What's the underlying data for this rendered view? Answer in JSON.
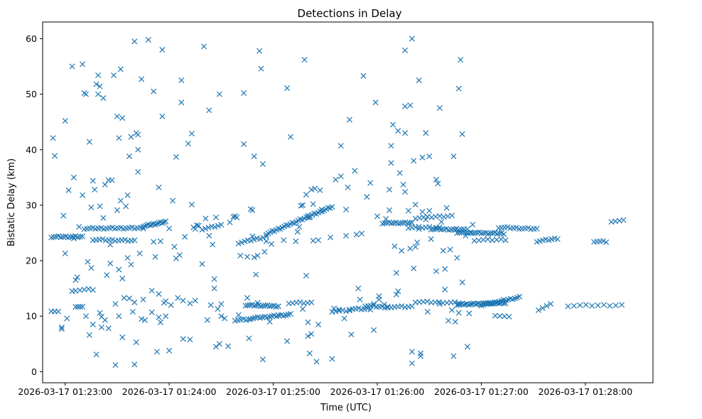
{
  "chart_data": {
    "type": "scatter",
    "title": "Detections in Delay",
    "xlabel": "Time (UTC)",
    "ylabel": "Bistatic Delay (km)",
    "x_unit": "seconds after 2026-03-17 01:22:00",
    "xlim": [
      47,
      399
    ],
    "ylim": [
      -2,
      63
    ],
    "x_ticks": [
      60,
      120,
      180,
      240,
      300,
      360
    ],
    "x_tick_labels": [
      "2026-03-17 01:23:00",
      "2026-03-17 01:24:00",
      "2026-03-17 01:25:00",
      "2026-03-17 01:26:00",
      "2026-03-17 01:27:00",
      "2026-03-17 01:28:00"
    ],
    "y_ticks": [
      0,
      10,
      20,
      30,
      40,
      50,
      60
    ],
    "y_tick_labels": [
      "0",
      "10",
      "20",
      "30",
      "40",
      "50",
      "60"
    ],
    "marker": "x",
    "color": "#1f77b4",
    "grid": false,
    "bands": [
      {
        "x0": 52,
        "x1": 70,
        "y0": 24.3,
        "y1": 24.3,
        "n": 14
      },
      {
        "x0": 71,
        "x1": 105,
        "y0": 25.8,
        "y1": 25.9,
        "n": 22
      },
      {
        "x0": 76,
        "x1": 100,
        "y0": 23.8,
        "y1": 23.6,
        "n": 14
      },
      {
        "x0": 105,
        "x1": 118,
        "y0": 26.2,
        "y1": 27.0,
        "n": 14
      },
      {
        "x0": 139,
        "x1": 150,
        "y0": 25.7,
        "y1": 26.4,
        "n": 7
      },
      {
        "x0": 160,
        "x1": 176,
        "y0": 23.2,
        "y1": 24.3,
        "n": 10
      },
      {
        "x0": 176,
        "x1": 214,
        "y0": 24.8,
        "y1": 29.7,
        "n": 34
      },
      {
        "x0": 243,
        "x1": 260,
        "y0": 26.8,
        "y1": 26.8,
        "n": 14
      },
      {
        "x0": 258,
        "x1": 276,
        "y0": 26.0,
        "y1": 26.0,
        "n": 10
      },
      {
        "x0": 262,
        "x1": 283,
        "y0": 27.7,
        "y1": 28.1,
        "n": 10
      },
      {
        "x0": 271,
        "x1": 290,
        "y0": 25.7,
        "y1": 25.6,
        "n": 14
      },
      {
        "x0": 286,
        "x1": 313,
        "y0": 25.1,
        "y1": 24.9,
        "n": 22
      },
      {
        "x0": 296,
        "x1": 314,
        "y0": 23.7,
        "y1": 23.8,
        "n": 8
      },
      {
        "x0": 310,
        "x1": 332,
        "y0": 26.0,
        "y1": 25.7,
        "n": 14
      },
      {
        "x0": 332,
        "x1": 344,
        "y0": 23.5,
        "y1": 24.0,
        "n": 8
      },
      {
        "x0": 365,
        "x1": 372,
        "y0": 23.5,
        "y1": 23.4,
        "n": 5
      },
      {
        "x0": 375,
        "x1": 382,
        "y0": 27.1,
        "y1": 27.2,
        "n": 4
      },
      {
        "x0": 52,
        "x1": 56,
        "y0": 11.0,
        "y1": 10.8,
        "n": 3
      },
      {
        "x0": 66,
        "x1": 70,
        "y0": 11.8,
        "y1": 11.6,
        "n": 4
      },
      {
        "x0": 66,
        "x1": 76,
        "y0": 14.7,
        "y1": 14.8,
        "n": 5
      },
      {
        "x0": 164,
        "x1": 183,
        "y0": 12.0,
        "y1": 11.8,
        "n": 16
      },
      {
        "x0": 158,
        "x1": 166,
        "y0": 9.3,
        "y1": 9.4,
        "n": 6
      },
      {
        "x0": 167,
        "x1": 190,
        "y0": 9.6,
        "y1": 10.3,
        "n": 18
      },
      {
        "x0": 189,
        "x1": 202,
        "y0": 12.4,
        "y1": 12.4,
        "n": 7
      },
      {
        "x0": 214,
        "x1": 224,
        "y0": 10.9,
        "y1": 11.0,
        "n": 6
      },
      {
        "x0": 224,
        "x1": 236,
        "y0": 11.3,
        "y1": 11.3,
        "n": 8
      },
      {
        "x0": 233,
        "x1": 246,
        "y0": 11.9,
        "y1": 11.6,
        "n": 9
      },
      {
        "x0": 248,
        "x1": 260,
        "y0": 11.7,
        "y1": 11.7,
        "n": 7
      },
      {
        "x0": 262,
        "x1": 287,
        "y0": 12.6,
        "y1": 12.4,
        "n": 12
      },
      {
        "x0": 286,
        "x1": 314,
        "y0": 12.1,
        "y1": 12.4,
        "n": 30
      },
      {
        "x0": 300,
        "x1": 322,
        "y0": 12.0,
        "y1": 13.4,
        "n": 18
      },
      {
        "x0": 308,
        "x1": 316,
        "y0": 10.2,
        "y1": 9.8,
        "n": 4
      },
      {
        "x0": 333,
        "x1": 340,
        "y0": 11.2,
        "y1": 12.1,
        "n": 4
      },
      {
        "x0": 350,
        "x1": 381,
        "y0": 11.9,
        "y1": 12.0,
        "n": 10
      }
    ],
    "scatter": [
      [
        53,
        42.1
      ],
      [
        54,
        38.9
      ],
      [
        58,
        8.0
      ],
      [
        58,
        7.7
      ],
      [
        59,
        28.1
      ],
      [
        60,
        21.3
      ],
      [
        60,
        45.2
      ],
      [
        61,
        9.6
      ],
      [
        62,
        32.7
      ],
      [
        64,
        14.5
      ],
      [
        64,
        55.0
      ],
      [
        65,
        24.0
      ],
      [
        65,
        35.0
      ],
      [
        66,
        16.5
      ],
      [
        67,
        17.0
      ],
      [
        68,
        26.1
      ],
      [
        70,
        55.4
      ],
      [
        70,
        31.8
      ],
      [
        71,
        50.2
      ],
      [
        72,
        50.0
      ],
      [
        72,
        10.0
      ],
      [
        73,
        19.8
      ],
      [
        74,
        6.6
      ],
      [
        74,
        41.4
      ],
      [
        75,
        18.7
      ],
      [
        75,
        29.6
      ],
      [
        76,
        34.4
      ],
      [
        76,
        8.5
      ],
      [
        77,
        32.8
      ],
      [
        78,
        3.1
      ],
      [
        78,
        51.8
      ],
      [
        79,
        53.4
      ],
      [
        79,
        50.0
      ],
      [
        80,
        51.4
      ],
      [
        80,
        29.8
      ],
      [
        80,
        10.6
      ],
      [
        81,
        8.0
      ],
      [
        81,
        9.9
      ],
      [
        82,
        49.3
      ],
      [
        82,
        27.7
      ],
      [
        83,
        33.7
      ],
      [
        83,
        9.3
      ],
      [
        84,
        17.4
      ],
      [
        85,
        7.8
      ],
      [
        85,
        34.5
      ],
      [
        86,
        19.5
      ],
      [
        86,
        22.9
      ],
      [
        87,
        34.5
      ],
      [
        88,
        53.4
      ],
      [
        89,
        1.2
      ],
      [
        89,
        12.2
      ],
      [
        90,
        46.0
      ],
      [
        90,
        29.1
      ],
      [
        91,
        42.1
      ],
      [
        91,
        10.0
      ],
      [
        91,
        18.4
      ],
      [
        92,
        54.5
      ],
      [
        92,
        30.8
      ],
      [
        93,
        45.7
      ],
      [
        93,
        6.2
      ],
      [
        93,
        16.8
      ],
      [
        94,
        13.3
      ],
      [
        95,
        29.8
      ],
      [
        96,
        31.8
      ],
      [
        96,
        20.5
      ],
      [
        97,
        38.8
      ],
      [
        97,
        13.2
      ],
      [
        98,
        42.3
      ],
      [
        98,
        19.3
      ],
      [
        99,
        10.8
      ],
      [
        100,
        59.5
      ],
      [
        100,
        1.3
      ],
      [
        100,
        12.5
      ],
      [
        101,
        5.3
      ],
      [
        101,
        43.0
      ],
      [
        102,
        42.7
      ],
      [
        102,
        36.0
      ],
      [
        102,
        40.0
      ],
      [
        103,
        21.3
      ],
      [
        104,
        52.7
      ],
      [
        104,
        9.5
      ],
      [
        105,
        13.0
      ],
      [
        106,
        9.3
      ],
      [
        108,
        59.8
      ],
      [
        110,
        14.6
      ],
      [
        110,
        10.7
      ],
      [
        111,
        50.5
      ],
      [
        111,
        23.4
      ],
      [
        112,
        20.7
      ],
      [
        113,
        3.6
      ],
      [
        114,
        33.2
      ],
      [
        114,
        9.8
      ],
      [
        114,
        14.0
      ],
      [
        115,
        8.9
      ],
      [
        115,
        23.5
      ],
      [
        116,
        46.0
      ],
      [
        116,
        58.0
      ],
      [
        117,
        12.4
      ],
      [
        118,
        10.0
      ],
      [
        118,
        12.7
      ],
      [
        120,
        25.8
      ],
      [
        120,
        3.8
      ],
      [
        121,
        12.0
      ],
      [
        122,
        30.8
      ],
      [
        123,
        22.5
      ],
      [
        124,
        20.4
      ],
      [
        124,
        38.7
      ],
      [
        125,
        13.3
      ],
      [
        126,
        21.0
      ],
      [
        127,
        52.5
      ],
      [
        127,
        48.5
      ],
      [
        128,
        5.9
      ],
      [
        128,
        12.8
      ],
      [
        129,
        24.3
      ],
      [
        131,
        41.1
      ],
      [
        132,
        12.3
      ],
      [
        132,
        5.8
      ],
      [
        133,
        30.1
      ],
      [
        133,
        42.9
      ],
      [
        134,
        26.0
      ],
      [
        135,
        12.8
      ],
      [
        135,
        25.7
      ],
      [
        136,
        26.4
      ],
      [
        137,
        26.3
      ],
      [
        139,
        19.4
      ],
      [
        140,
        58.6
      ],
      [
        141,
        27.6
      ],
      [
        142,
        9.3
      ],
      [
        143,
        47.1
      ],
      [
        143,
        24.5
      ],
      [
        144,
        12.0
      ],
      [
        145,
        22.9
      ],
      [
        146,
        15.0
      ],
      [
        146,
        16.7
      ],
      [
        147,
        27.8
      ],
      [
        147,
        4.5
      ],
      [
        148,
        11.3
      ],
      [
        149,
        5.0
      ],
      [
        149,
        50.0
      ],
      [
        150,
        10.0
      ],
      [
        150,
        12.2
      ],
      [
        152,
        9.6
      ],
      [
        154,
        4.6
      ],
      [
        155,
        26.9
      ],
      [
        157,
        27.9
      ],
      [
        158,
        28.0
      ],
      [
        159,
        27.8
      ],
      [
        160,
        10.2
      ],
      [
        161,
        20.9
      ],
      [
        163,
        50.2
      ],
      [
        163,
        41.0
      ],
      [
        165,
        20.7
      ],
      [
        165,
        13.3
      ],
      [
        166,
        6.0
      ],
      [
        167,
        29.3
      ],
      [
        168,
        24.4
      ],
      [
        168,
        29.1
      ],
      [
        169,
        38.8
      ],
      [
        169,
        20.6
      ],
      [
        170,
        17.5
      ],
      [
        171,
        20.9
      ],
      [
        171,
        12.4
      ],
      [
        172,
        57.8
      ],
      [
        173,
        54.6
      ],
      [
        174,
        37.4
      ],
      [
        174,
        2.2
      ],
      [
        175,
        21.6
      ],
      [
        176,
        23.5
      ],
      [
        178,
        9.0
      ],
      [
        179,
        23.0
      ],
      [
        183,
        10.2
      ],
      [
        186,
        23.7
      ],
      [
        188,
        51.1
      ],
      [
        188,
        5.5
      ],
      [
        190,
        42.3
      ],
      [
        193,
        23.5
      ],
      [
        194,
        25.2
      ],
      [
        195,
        26.1
      ],
      [
        196,
        29.9
      ],
      [
        197,
        11.3
      ],
      [
        197,
        30.0
      ],
      [
        198,
        56.2
      ],
      [
        199,
        31.9
      ],
      [
        199,
        17.3
      ],
      [
        200,
        28.1
      ],
      [
        200,
        8.9
      ],
      [
        200,
        6.4
      ],
      [
        201,
        27.8
      ],
      [
        201,
        3.3
      ],
      [
        202,
        32.8
      ],
      [
        202,
        6.8
      ],
      [
        203,
        23.6
      ],
      [
        203,
        30.2
      ],
      [
        204,
        33.0
      ],
      [
        205,
        1.8
      ],
      [
        206,
        23.7
      ],
      [
        206,
        8.5
      ],
      [
        207,
        32.7
      ],
      [
        208,
        29.2
      ],
      [
        213,
        24.2
      ],
      [
        214,
        2.3
      ],
      [
        215,
        11.4
      ],
      [
        216,
        34.6
      ],
      [
        218,
        11.2
      ],
      [
        219,
        40.7
      ],
      [
        219,
        35.2
      ],
      [
        221,
        9.6
      ],
      [
        222,
        24.5
      ],
      [
        222,
        29.2
      ],
      [
        223,
        33.2
      ],
      [
        224,
        45.4
      ],
      [
        225,
        6.7
      ],
      [
        227,
        36.2
      ],
      [
        228,
        24.7
      ],
      [
        229,
        15.0
      ],
      [
        230,
        13.0
      ],
      [
        231,
        24.9
      ],
      [
        232,
        53.3
      ],
      [
        234,
        31.5
      ],
      [
        236,
        34.0
      ],
      [
        238,
        7.5
      ],
      [
        238,
        12.2
      ],
      [
        239,
        48.5
      ],
      [
        240,
        28.0
      ],
      [
        241,
        13.0
      ],
      [
        241,
        13.6
      ],
      [
        244,
        12.1
      ],
      [
        245,
        27.5
      ],
      [
        246,
        11.7
      ],
      [
        247,
        32.8
      ],
      [
        247,
        29.1
      ],
      [
        248,
        40.7
      ],
      [
        248,
        37.6
      ],
      [
        249,
        44.5
      ],
      [
        250,
        22.6
      ],
      [
        251,
        17.8
      ],
      [
        251,
        13.9
      ],
      [
        252,
        43.4
      ],
      [
        252,
        14.5
      ],
      [
        253,
        35.8
      ],
      [
        254,
        21.8
      ],
      [
        255,
        33.7
      ],
      [
        256,
        32.4
      ],
      [
        256,
        57.9
      ],
      [
        256,
        43.0
      ],
      [
        256,
        47.8
      ],
      [
        258,
        29.0
      ],
      [
        259,
        22.2
      ],
      [
        259,
        48.0
      ],
      [
        260,
        60.0
      ],
      [
        260,
        3.6
      ],
      [
        260,
        1.5
      ],
      [
        261,
        18.6
      ],
      [
        261,
        38.0
      ],
      [
        262,
        30.1
      ],
      [
        262,
        22.5
      ],
      [
        263,
        23.3
      ],
      [
        264,
        52.5
      ],
      [
        264,
        25.7
      ],
      [
        265,
        2.8
      ],
      [
        265,
        3.3
      ],
      [
        266,
        38.6
      ],
      [
        266,
        28.8
      ],
      [
        268,
        43.0
      ],
      [
        268,
        27.4
      ],
      [
        269,
        10.8
      ],
      [
        270,
        38.8
      ],
      [
        270,
        29.0
      ],
      [
        271,
        23.9
      ],
      [
        274,
        18.1
      ],
      [
        274,
        34.6
      ],
      [
        275,
        33.9
      ],
      [
        276,
        12.2
      ],
      [
        276,
        47.5
      ],
      [
        277,
        27.0
      ],
      [
        278,
        21.8
      ],
      [
        279,
        14.8
      ],
      [
        279,
        18.5
      ],
      [
        280,
        29.5
      ],
      [
        281,
        9.2
      ],
      [
        282,
        22.0
      ],
      [
        283,
        11.1
      ],
      [
        284,
        38.8
      ],
      [
        284,
        2.8
      ],
      [
        285,
        9.0
      ],
      [
        285,
        25.5
      ],
      [
        286,
        20.5
      ],
      [
        287,
        51.0
      ],
      [
        287,
        10.6
      ],
      [
        288,
        56.2
      ],
      [
        289,
        42.8
      ],
      [
        289,
        16.1
      ],
      [
        291,
        24.5
      ],
      [
        292,
        25.7
      ],
      [
        292,
        4.5
      ],
      [
        293,
        10.5
      ],
      [
        294,
        25.0
      ],
      [
        295,
        26.5
      ]
    ]
  }
}
